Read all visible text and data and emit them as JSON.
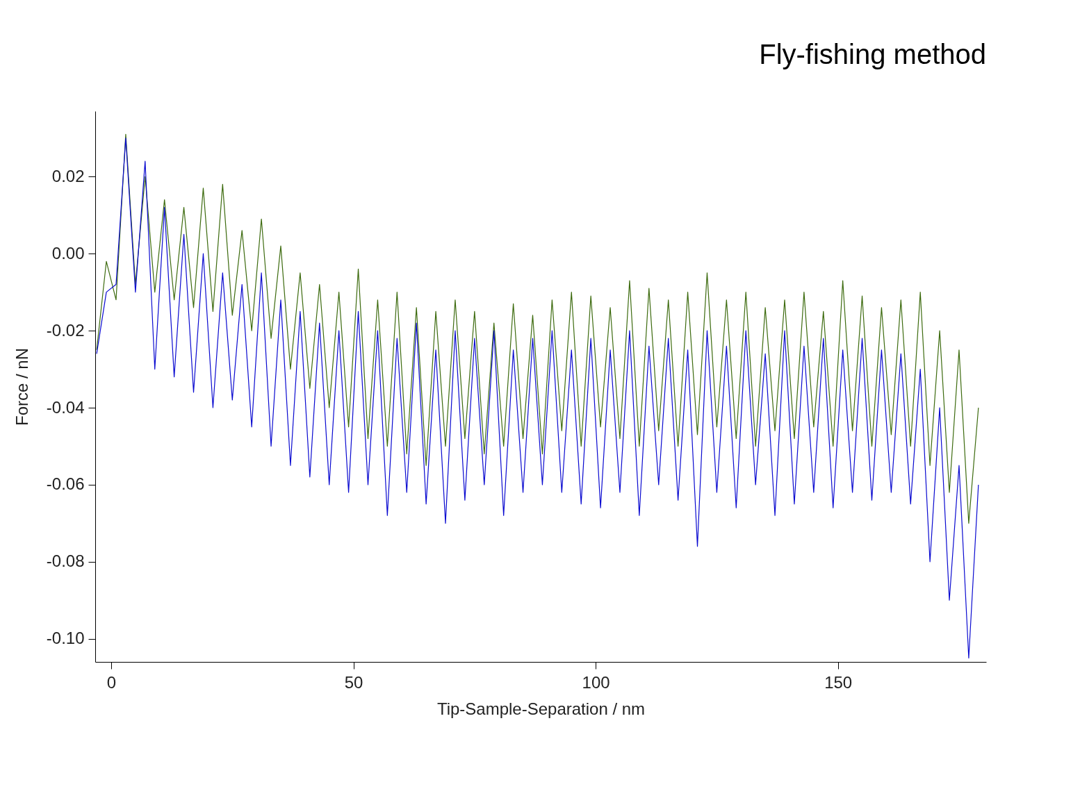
{
  "chart_data": {
    "type": "line",
    "title": "Fly-fishing method",
    "xlabel": "Tip-Sample-Separation  / nm",
    "ylabel": "Force  / nN",
    "x": [
      -3,
      -1,
      1,
      3,
      5,
      7,
      9,
      11,
      13,
      15,
      17,
      19,
      21,
      23,
      25,
      27,
      29,
      31,
      33,
      35,
      37,
      39,
      41,
      43,
      45,
      47,
      49,
      51,
      53,
      55,
      57,
      59,
      61,
      63,
      65,
      67,
      69,
      71,
      73,
      75,
      77,
      79,
      81,
      83,
      85,
      87,
      89,
      91,
      93,
      95,
      97,
      99,
      101,
      103,
      105,
      107,
      109,
      111,
      113,
      115,
      117,
      119,
      121,
      123,
      125,
      127,
      129,
      131,
      133,
      135,
      137,
      139,
      141,
      143,
      145,
      147,
      149,
      151,
      153,
      155,
      157,
      159,
      161,
      163,
      165,
      167,
      169,
      171,
      173,
      175,
      177,
      179
    ],
    "series": [
      {
        "color": "#3d6b0f",
        "values": [
          -0.025,
          -0.002,
          -0.012,
          0.031,
          -0.008,
          0.02,
          -0.01,
          0.014,
          -0.012,
          0.012,
          -0.014,
          0.017,
          -0.015,
          0.018,
          -0.016,
          0.006,
          -0.02,
          0.009,
          -0.022,
          0.002,
          -0.03,
          -0.005,
          -0.035,
          -0.008,
          -0.04,
          -0.01,
          -0.045,
          -0.004,
          -0.048,
          -0.012,
          -0.05,
          -0.01,
          -0.052,
          -0.014,
          -0.055,
          -0.015,
          -0.05,
          -0.012,
          -0.048,
          -0.015,
          -0.052,
          -0.018,
          -0.05,
          -0.013,
          -0.048,
          -0.016,
          -0.052,
          -0.012,
          -0.046,
          -0.01,
          -0.05,
          -0.011,
          -0.045,
          -0.014,
          -0.048,
          -0.007,
          -0.05,
          -0.009,
          -0.046,
          -0.012,
          -0.05,
          -0.01,
          -0.047,
          -0.005,
          -0.045,
          -0.012,
          -0.048,
          -0.01,
          -0.05,
          -0.014,
          -0.046,
          -0.012,
          -0.048,
          -0.01,
          -0.045,
          -0.015,
          -0.05,
          -0.007,
          -0.046,
          -0.011,
          -0.05,
          -0.014,
          -0.047,
          -0.012,
          -0.05,
          -0.01,
          -0.055,
          -0.02,
          -0.062,
          -0.025,
          -0.07,
          -0.04
        ]
      },
      {
        "color": "#0a0ad0",
        "values": [
          -0.026,
          -0.01,
          -0.008,
          0.03,
          -0.01,
          0.024,
          -0.03,
          0.012,
          -0.032,
          0.005,
          -0.036,
          0.0,
          -0.04,
          -0.005,
          -0.038,
          -0.008,
          -0.045,
          -0.005,
          -0.05,
          -0.012,
          -0.055,
          -0.015,
          -0.058,
          -0.018,
          -0.06,
          -0.02,
          -0.062,
          -0.015,
          -0.06,
          -0.02,
          -0.068,
          -0.022,
          -0.062,
          -0.018,
          -0.065,
          -0.025,
          -0.07,
          -0.02,
          -0.064,
          -0.022,
          -0.06,
          -0.02,
          -0.068,
          -0.025,
          -0.062,
          -0.022,
          -0.06,
          -0.02,
          -0.062,
          -0.025,
          -0.065,
          -0.022,
          -0.066,
          -0.025,
          -0.062,
          -0.02,
          -0.068,
          -0.024,
          -0.06,
          -0.022,
          -0.064,
          -0.025,
          -0.076,
          -0.02,
          -0.062,
          -0.024,
          -0.066,
          -0.02,
          -0.06,
          -0.026,
          -0.068,
          -0.02,
          -0.065,
          -0.024,
          -0.062,
          -0.022,
          -0.066,
          -0.025,
          -0.062,
          -0.022,
          -0.064,
          -0.025,
          -0.062,
          -0.026,
          -0.065,
          -0.03,
          -0.08,
          -0.04,
          -0.09,
          -0.055,
          -0.105,
          -0.06
        ]
      }
    ],
    "xlim": [
      -3.3,
      180.6
    ],
    "xticks": [
      0,
      50,
      100,
      150
    ],
    "ylim": [
      -0.106,
      0.037
    ],
    "yticks": [
      {
        "value": 0.02,
        "label": "0.02"
      },
      {
        "value": 0,
        "label": "0.00"
      },
      {
        "value": -0.02,
        "label": "-0.02"
      },
      {
        "value": -0.04,
        "label": "-0.04"
      },
      {
        "value": -0.06,
        "label": "-0.06"
      },
      {
        "value": -0.08,
        "label": "-0.08"
      },
      {
        "value": -0.1,
        "label": "-0.10"
      }
    ],
    "grid": false,
    "line_style": "solid",
    "marker": "none"
  }
}
